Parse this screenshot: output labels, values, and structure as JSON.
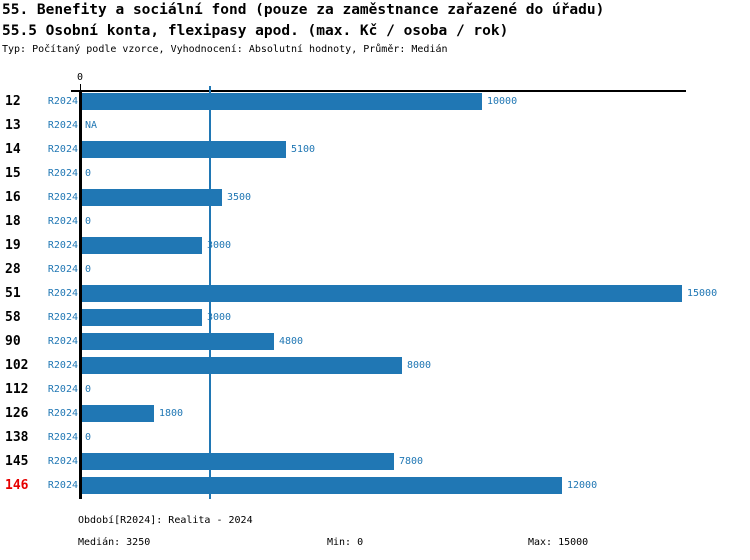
{
  "header": {
    "title_line1": "55. Benefity a sociální fond (pouze za zaměstnance zařazené do úřadu)",
    "title_line2": "55.5 Osobní konta, flexipasy apod. (max. Kč / osoba / rok)",
    "meta": "Typ: Počítaný podle vzorce, Vyhodnocení: Absolutní hodnoty, Průměr: Medián"
  },
  "chart_data": {
    "type": "bar",
    "orientation": "horizontal",
    "title": "55.5 Osobní konta, flexipasy apod. (max. Kč / osoba / rok)",
    "categories": [
      "12",
      "13",
      "14",
      "15",
      "16",
      "18",
      "19",
      "28",
      "51",
      "58",
      "90",
      "102",
      "112",
      "126",
      "138",
      "145",
      "146"
    ],
    "series_label": "R2024",
    "values": [
      10000,
      null,
      5100,
      0,
      3500,
      0,
      3000,
      0,
      15000,
      3000,
      4800,
      8000,
      0,
      1800,
      0,
      7800,
      12000
    ],
    "value_labels": [
      "10000",
      "NA",
      "5100",
      "0",
      "3500",
      "0",
      "3000",
      "0",
      "15000",
      "3000",
      "4800",
      "8000",
      "0",
      "1800",
      "0",
      "7800",
      "12000"
    ],
    "highlighted_category": "146",
    "xlim": [
      0,
      15000
    ],
    "x_tick_labels": [
      "0"
    ],
    "median_line_value": 3250,
    "grid": false,
    "legend": false,
    "colors": {
      "bar": "#2077b4",
      "value_text": "#2077b4",
      "median_line": "#2077b4",
      "category_text": "#000000",
      "highlight_text": "#e60000",
      "axis": "#000000"
    }
  },
  "footer": {
    "period": "Období[R2024]: Realita - 2024",
    "median": "Medián: 3250",
    "min": "Min: 0",
    "max": "Max: 15000"
  }
}
